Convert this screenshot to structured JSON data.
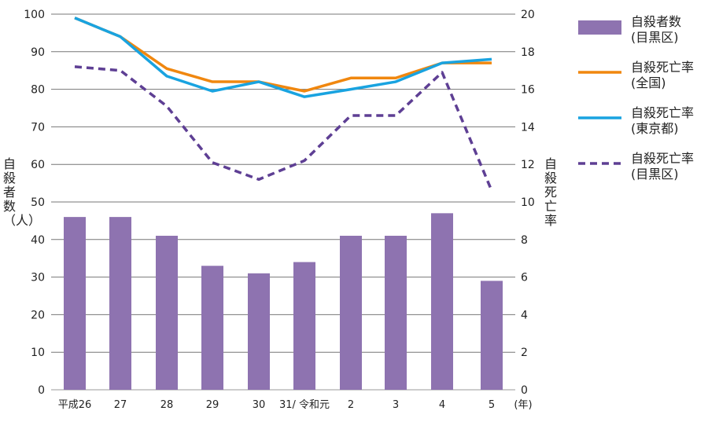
{
  "chart_data": {
    "type": "bar+line",
    "categories": [
      "平成26",
      "27",
      "28",
      "29",
      "30",
      "31/ 令和元",
      "2",
      "3",
      "4",
      "5"
    ],
    "x_unit": "(年)",
    "ylabel_left": "自殺者数（人）",
    "ylabel_right": "自殺死亡率",
    "ylim_left": [
      0,
      100
    ],
    "ylim_right": [
      0,
      20
    ],
    "yticks_left": [
      0,
      10,
      20,
      30,
      40,
      50,
      60,
      70,
      80,
      90,
      100
    ],
    "yticks_right": [
      0,
      2,
      4,
      6,
      8,
      10,
      12,
      14,
      16,
      18,
      20
    ],
    "grid": true,
    "legend_position": "right",
    "series": [
      {
        "name": "自殺者数",
        "name2": "(目黒区)",
        "type": "bar",
        "axis": "left",
        "color": "#8e73b0",
        "values": [
          46,
          46,
          41,
          33,
          31,
          34,
          41,
          41,
          47,
          29
        ]
      },
      {
        "name": "自殺死亡率",
        "name2": "(全国)",
        "type": "line",
        "axis": "right",
        "color": "#f0870f",
        "dash": false,
        "values": [
          19.8,
          18.8,
          17.1,
          16.4,
          16.4,
          15.9,
          16.6,
          16.6,
          17.4,
          17.4
        ]
      },
      {
        "name": "自殺死亡率",
        "name2": "(東京都)",
        "type": "line",
        "axis": "right",
        "color": "#19a3e0",
        "dash": false,
        "values": [
          19.8,
          18.8,
          16.7,
          15.9,
          16.4,
          15.6,
          16.0,
          16.4,
          17.4,
          17.6
        ]
      },
      {
        "name": "自殺死亡率",
        "name2": "(目黒区)",
        "type": "line",
        "axis": "right",
        "color": "#5e3f94",
        "dash": true,
        "values": [
          17.2,
          17.0,
          15.1,
          12.1,
          11.2,
          12.2,
          14.6,
          14.6,
          16.9,
          10.6
        ]
      }
    ]
  }
}
